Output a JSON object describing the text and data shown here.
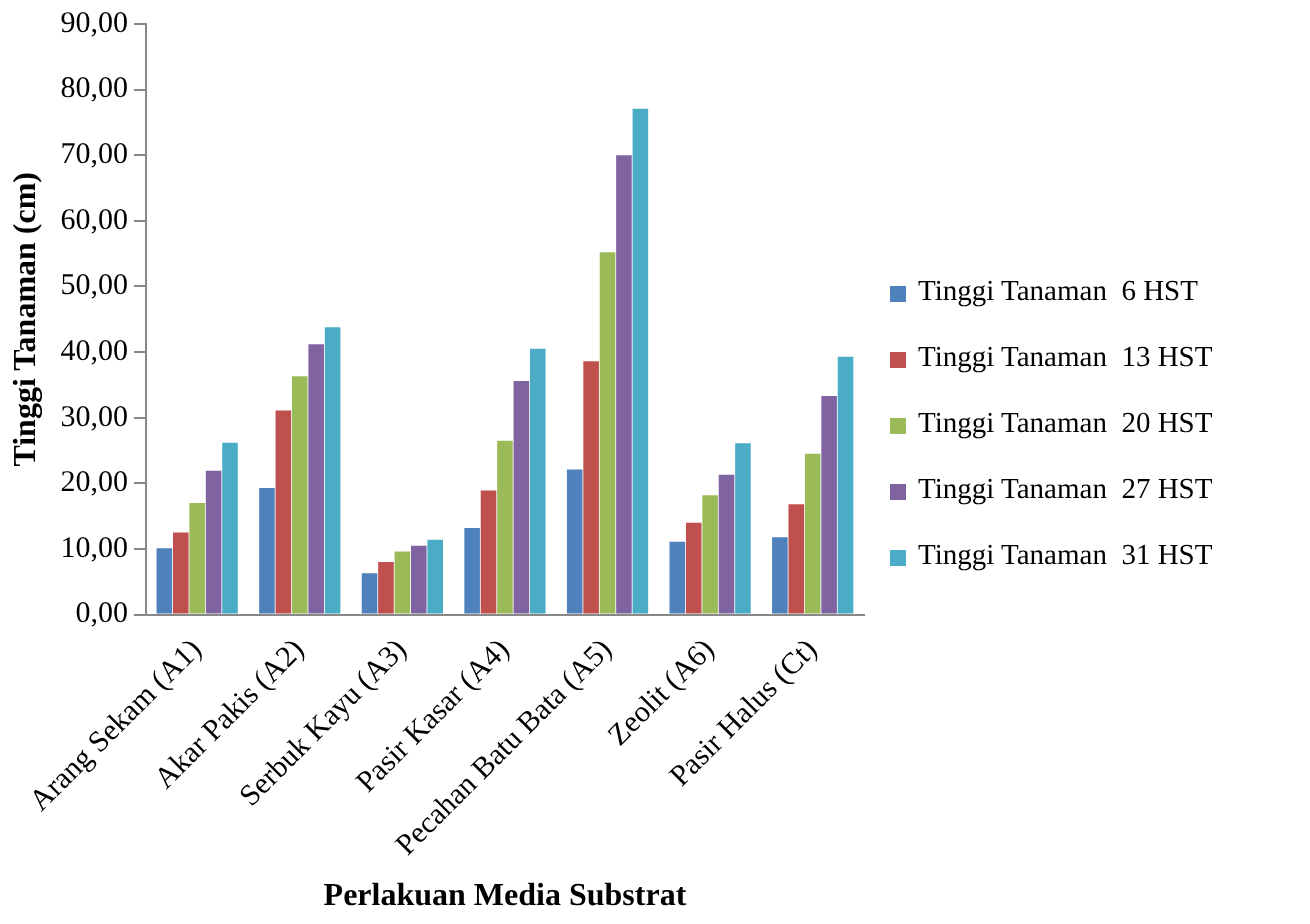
{
  "chart_data": {
    "type": "bar",
    "xlabel": "Perlakuan Media Substrat",
    "ylabel": "Tinggi Tanaman (cm)",
    "categories": [
      "Arang Sekam (A1)",
      "Akar Pakis (A2)",
      "Serbuk Kayu (A3)",
      "Pasir Kasar (A4)",
      "Pecahan Batu Bata (A5)",
      "Zeolit (A6)",
      "Pasir Halus (Ct)"
    ],
    "series": [
      {
        "name": "Tinggi Tanaman  6 HST",
        "color": "#4f81bd",
        "values": [
          10.1,
          19.3,
          6.3,
          13.2,
          22.1,
          11.1,
          11.8
        ]
      },
      {
        "name": "Tinggi Tanaman  13 HST",
        "color": "#c0504d",
        "values": [
          12.5,
          31.1,
          8.0,
          18.9,
          38.6,
          14.0,
          16.8
        ]
      },
      {
        "name": "Tinggi Tanaman  20 HST",
        "color": "#9bbb59",
        "values": [
          17.0,
          36.3,
          9.6,
          26.5,
          55.2,
          18.2,
          24.5
        ]
      },
      {
        "name": "Tinggi Tanaman  27 HST",
        "color": "#8064a2",
        "values": [
          21.9,
          41.2,
          10.5,
          35.6,
          70.0,
          21.3,
          33.3
        ]
      },
      {
        "name": "Tinggi Tanaman  31 HST",
        "color": "#4bacc6",
        "values": [
          26.2,
          43.8,
          11.4,
          40.5,
          77.1,
          26.1,
          39.3
        ]
      }
    ],
    "ylim": [
      0,
      90
    ],
    "yticks": [
      {
        "value": 0,
        "label": "0,00"
      },
      {
        "value": 10,
        "label": "10,00"
      },
      {
        "value": 20,
        "label": "20,00"
      },
      {
        "value": 30,
        "label": "30,00"
      },
      {
        "value": 40,
        "label": "40,00"
      },
      {
        "value": 50,
        "label": "50,00"
      },
      {
        "value": 60,
        "label": "60,00"
      },
      {
        "value": 70,
        "label": "70,00"
      },
      {
        "value": 80,
        "label": "80,00"
      },
      {
        "value": 90,
        "label": "90,00"
      }
    ],
    "grid": false,
    "legend": "right"
  }
}
